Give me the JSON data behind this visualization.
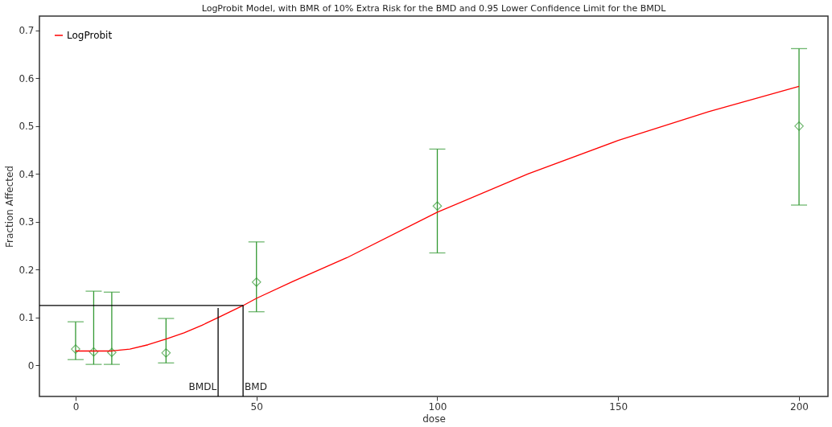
{
  "chart_data": {
    "type": "scatter",
    "title": "LogProbit Model, with BMR of 10% Extra Risk for the BMD and 0.95 Lower Confidence Limit for the BMDL",
    "xlabel": "dose",
    "ylabel": "Fraction Affected",
    "xlim": [
      -10,
      208
    ],
    "ylim": [
      -0.065,
      0.73
    ],
    "xticks": [
      0,
      50,
      100,
      150,
      200
    ],
    "yticks": [
      0,
      0.1,
      0.2,
      0.3,
      0.4,
      0.5,
      0.6,
      0.7
    ],
    "grid": false,
    "legend": "top left",
    "series": [
      {
        "color": "#339933",
        "marker": "diamond",
        "x": [
          0,
          5,
          10,
          25,
          50,
          100,
          200
        ],
        "values": [
          0.034,
          0.028,
          0.027,
          0.026,
          0.174,
          0.333,
          0.5
        ],
        "errors": [
          [
            0.012,
            0.091
          ],
          [
            0.002,
            0.155
          ],
          [
            0.002,
            0.153
          ],
          [
            0.005,
            0.098
          ],
          [
            0.112,
            0.258
          ],
          [
            0.235,
            0.452
          ],
          [
            0.335,
            0.662
          ]
        ]
      },
      {
        "type": "line",
        "name": "LogProbit",
        "color": "#ff0000",
        "x": [
          0,
          10,
          15,
          20,
          25,
          30,
          35,
          40,
          46.3,
          50,
          60,
          75,
          100,
          125,
          150,
          175,
          200
        ],
        "values": [
          0.03,
          0.03,
          0.034,
          0.043,
          0.055,
          0.068,
          0.084,
          0.102,
          0.125,
          0.14,
          0.175,
          0.225,
          0.32,
          0.4,
          0.47,
          0.53,
          0.583
        ]
      },
      {
        "type": "line",
        "color": "#000000",
        "x": [
          -10,
          46.3,
          46.3
        ],
        "values": [
          0.125,
          0.125,
          -0.065
        ]
      },
      {
        "type": "line",
        "color": "#000000",
        "x": [
          39.4,
          39.4
        ],
        "values": [
          0.12,
          -0.065
        ]
      }
    ],
    "annotations": [
      {
        "text": "BMDL",
        "x": 39.4,
        "y": -0.045
      },
      {
        "text": "BMD",
        "x": 46.3,
        "y": -0.045
      }
    ]
  }
}
